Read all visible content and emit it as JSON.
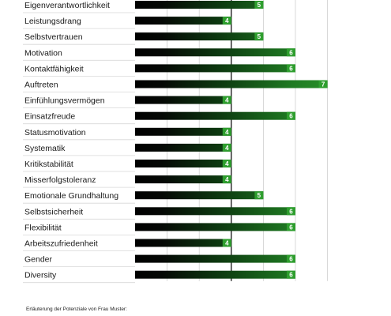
{
  "chart_data": {
    "type": "bar",
    "orientation": "horizontal",
    "categories": [
      "Eigenverantwortlichkeit",
      "Leistungsdrang",
      "Selbstvertrauen",
      "Motivation",
      "Kontaktfähigkeit",
      "Auftreten",
      "Einfühlungsvermögen",
      "Einsatzfreude",
      "Statusmotivation",
      "Systematik",
      "Kritikstabilität",
      "Misserfolgstoleranz",
      "Emotionale Grundhaltung",
      "Selbstsicherheit",
      "Flexibilität",
      "Arbeitszufriedenheit",
      "Gender",
      "Diversity"
    ],
    "values": [
      5,
      4,
      5,
      6,
      6,
      7,
      4,
      6,
      4,
      4,
      4,
      4,
      5,
      6,
      6,
      4,
      6,
      6
    ],
    "xlim": [
      1,
      7
    ],
    "grid": true,
    "colors": {
      "low": "#000000",
      "high": "#2a9a2a",
      "label_box": "#2e9e2e"
    }
  },
  "footnote": "Erläuterung der Potenziale von Frau Muster:"
}
